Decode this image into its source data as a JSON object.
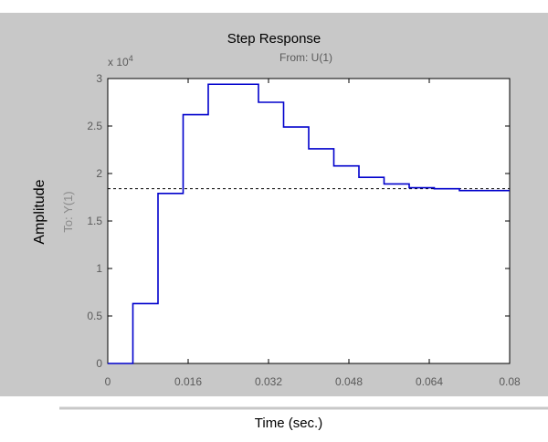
{
  "chart_data": {
    "type": "line",
    "step": true,
    "title": "Step Response",
    "subtitle": "From: U(1)",
    "xlabel": "Time (sec.)",
    "ylabel": "Amplitude",
    "ylabel_inner": "To: Y(1)",
    "y_multiplier": "x 10",
    "y_multiplier_exp": "4",
    "xlim": [
      0,
      0.08
    ],
    "ylim": [
      0,
      3
    ],
    "x_ticks": [
      0,
      0.016,
      0.032,
      0.048,
      0.064,
      0.08
    ],
    "x_tick_labels": [
      "0",
      "0.016",
      "0.032",
      "0.048",
      "0.064",
      "0.08"
    ],
    "y_ticks": [
      0,
      0.5,
      1,
      1.5,
      2,
      2.5,
      3
    ],
    "y_tick_labels": [
      "0",
      "0.5",
      "1",
      "1.5",
      "2",
      "2.5",
      "3"
    ],
    "grid": false,
    "series": [
      {
        "x": [
          0,
          0.005,
          0.01,
          0.015,
          0.02,
          0.025,
          0.03,
          0.035,
          0.04,
          0.045,
          0.05,
          0.055,
          0.06,
          0.065,
          0.07,
          0.075,
          0.08
        ],
        "y": [
          0,
          0.63,
          1.79,
          2.62,
          2.94,
          2.94,
          2.75,
          2.49,
          2.26,
          2.08,
          1.96,
          1.89,
          1.85,
          1.84,
          1.82,
          1.82,
          1.82
        ],
        "color": "#0000cc"
      }
    ],
    "steady_state": {
      "y": 1.84,
      "style": "dashed",
      "color": "#000000"
    }
  },
  "colors": {
    "figure_bg": "#c8c8c8",
    "axes_bg": "#ffffff",
    "tick_text": "#5a5a5a",
    "title_text": "#000000"
  }
}
